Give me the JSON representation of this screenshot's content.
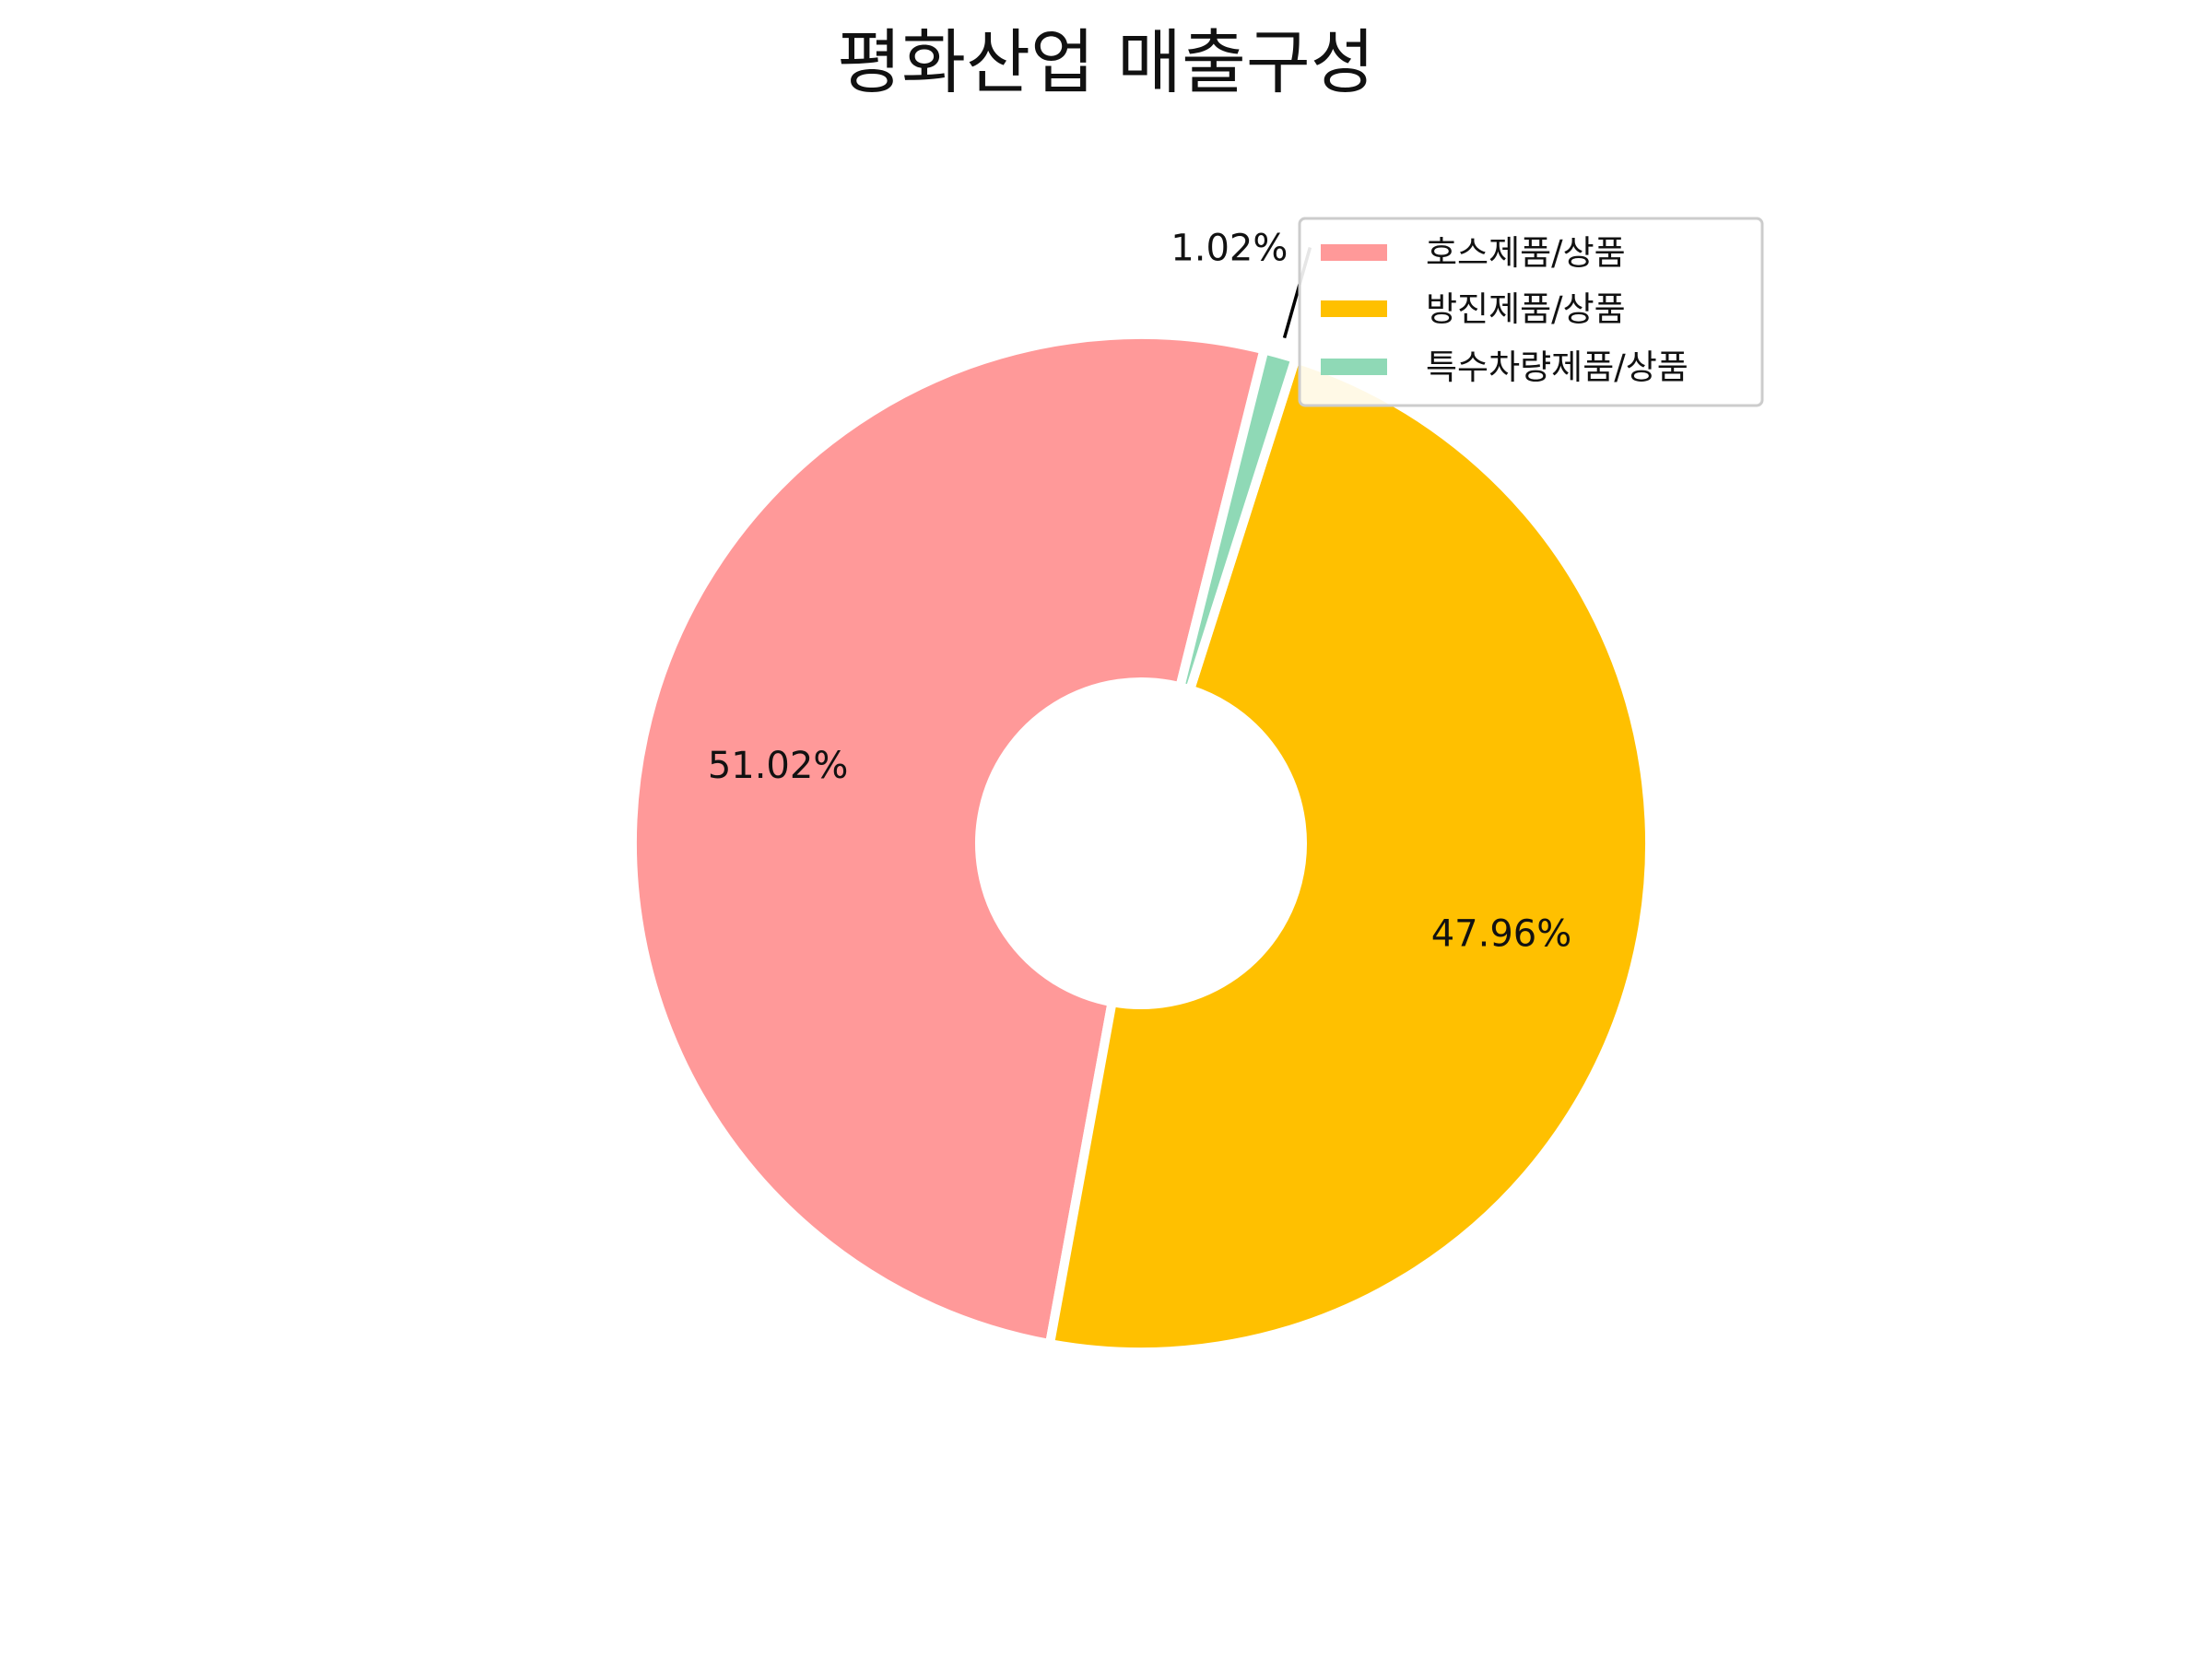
{
  "chart_data": {
    "type": "pie",
    "variant": "donut",
    "title": "평화산업 매출구성",
    "categories": [
      "호스제품/상품",
      "방진제품/상품",
      "특수차량제품/상품"
    ],
    "values": [
      51.02,
      47.96,
      1.02
    ],
    "value_labels": [
      "51.02%",
      "47.96%",
      "1.02%"
    ],
    "colors": [
      "#ff9999",
      "#ffc000",
      "#8fd9b6"
    ],
    "start_angle_deg": 76,
    "direction": "counterclockwise",
    "legend": {
      "position": "top-right",
      "entries": [
        "호스제품/상품",
        "방진제품/상품",
        "특수차량제품/상품"
      ]
    },
    "grid": false
  }
}
